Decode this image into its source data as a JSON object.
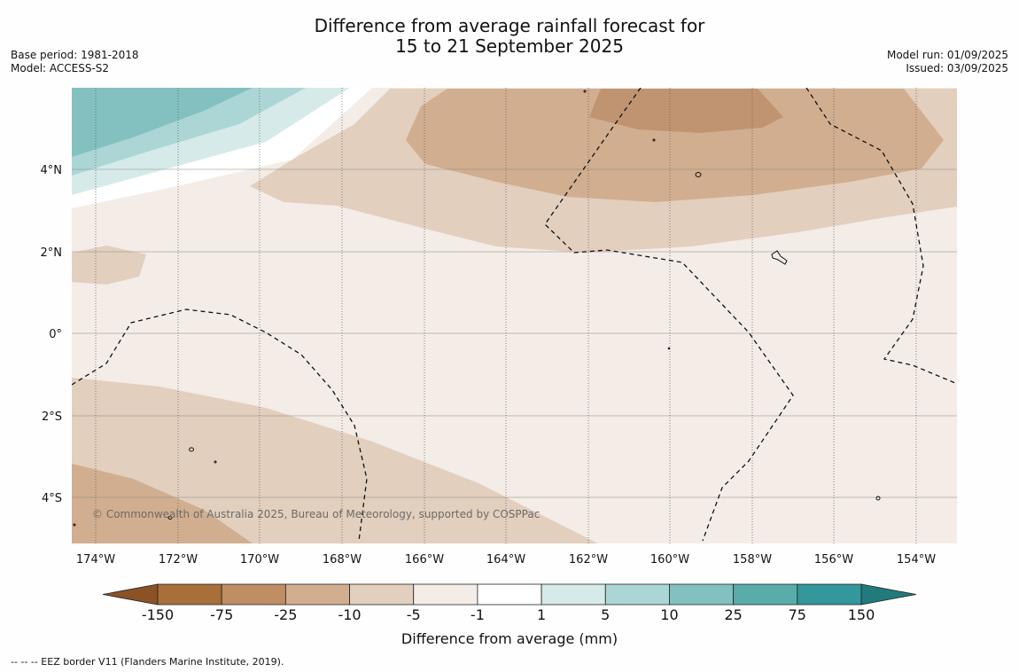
{
  "title_line1": "Difference from average rainfall forecast for",
  "title_line2": "15 to 21 September 2025",
  "base_period": "Base period: 1981-2018",
  "model": "Model: ACCESS-S2",
  "model_run": "Model run: 01/09/2025",
  "issued": "Issued: 03/09/2025",
  "copyright": "© Commonwealth of Australia 2025, Bureau of Meteorology, supported by COSPPac",
  "lat_labels": [
    "4°N",
    "2°N",
    "0°",
    "2°S",
    "4°S"
  ],
  "lon_labels": [
    "174°W",
    "172°W",
    "170°W",
    "168°W",
    "166°W",
    "164°W",
    "162°W",
    "160°W",
    "158°W",
    "156°W",
    "154°W"
  ],
  "colorbar": {
    "label": "Difference from average (mm)",
    "ticks": [
      "-150",
      "-75",
      "-25",
      "-10",
      "-5",
      "-1",
      "1",
      "5",
      "10",
      "25",
      "75",
      "150"
    ],
    "colors": [
      "#a86f3a",
      "#bf8e62",
      "#d1ae8f",
      "#e2cfbe",
      "#f4ece6",
      "#ffffff",
      "#d6eaea",
      "#acd6d6",
      "#82c1bf",
      "#5aacaa",
      "#33979b"
    ],
    "extend_low_color": "#8a5225",
    "extend_high_color": "#217a7c"
  },
  "footer": "-- -- -- EEZ border V11 (Flanders Marine Institute, 2019)."
}
